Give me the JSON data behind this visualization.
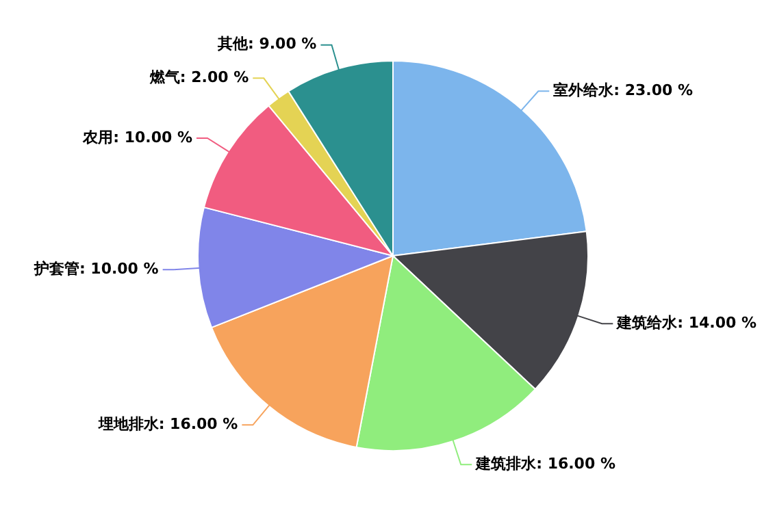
{
  "chart_data": {
    "type": "pie",
    "categories": [
      "室外给水",
      "建筑给水",
      "建筑排水",
      "埋地排水",
      "护套管",
      "农用",
      "燃气",
      "其他"
    ],
    "values": [
      23,
      14,
      16,
      16,
      10,
      10,
      2,
      9
    ],
    "value_labels": [
      "23.00 %",
      "14.00 %",
      "16.00 %",
      "16.00 %",
      "10.00 %",
      "10.00 %",
      "2.00 %",
      "9.00 %"
    ],
    "colors": [
      "#7cb5ec",
      "#434348",
      "#90ed7d",
      "#f7a35c",
      "#8085e9",
      "#f15c80",
      "#e4d354",
      "#2b908f"
    ],
    "legend": false
  }
}
